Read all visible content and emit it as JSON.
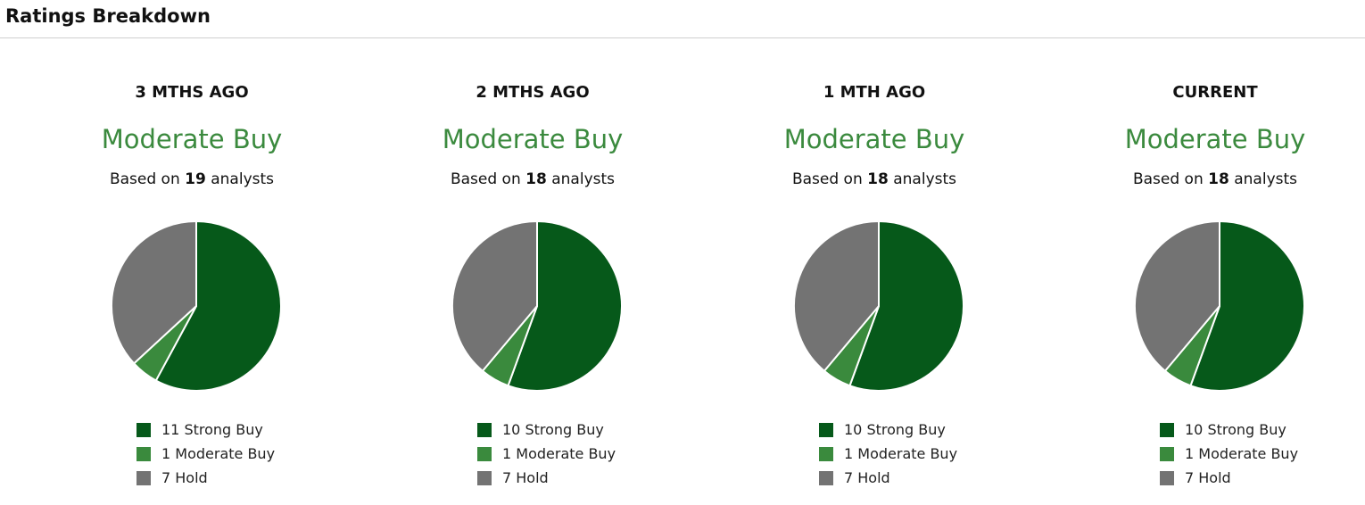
{
  "header": {
    "title": "Ratings Breakdown"
  },
  "colors": {
    "strong_buy": "#06591a",
    "moderate_buy": "#3a8a3d",
    "hold": "#737373"
  },
  "panels": [
    {
      "period": "3 MTHS AGO",
      "consensus": "Moderate Buy",
      "based_prefix": "Based on",
      "analyst_count": "19",
      "based_suffix": "analysts",
      "legend": [
        "11 Strong Buy",
        "1 Moderate Buy",
        "7 Hold"
      ]
    },
    {
      "period": "2 MTHS AGO",
      "consensus": "Moderate Buy",
      "based_prefix": "Based on",
      "analyst_count": "18",
      "based_suffix": "analysts",
      "legend": [
        "10 Strong Buy",
        "1 Moderate Buy",
        "7 Hold"
      ]
    },
    {
      "period": "1 MTH AGO",
      "consensus": "Moderate Buy",
      "based_prefix": "Based on",
      "analyst_count": "18",
      "based_suffix": "analysts",
      "legend": [
        "10 Strong Buy",
        "1 Moderate Buy",
        "7 Hold"
      ]
    },
    {
      "period": "CURRENT",
      "consensus": "Moderate Buy",
      "based_prefix": "Based on",
      "analyst_count": "18",
      "based_suffix": "analysts",
      "legend": [
        "10 Strong Buy",
        "1 Moderate Buy",
        "7 Hold"
      ]
    }
  ],
  "chart_data": [
    {
      "type": "pie",
      "title": "3 MTHS AGO",
      "categories": [
        "Strong Buy",
        "Moderate Buy",
        "Hold"
      ],
      "values": [
        11,
        1,
        7
      ]
    },
    {
      "type": "pie",
      "title": "2 MTHS AGO",
      "categories": [
        "Strong Buy",
        "Moderate Buy",
        "Hold"
      ],
      "values": [
        10,
        1,
        7
      ]
    },
    {
      "type": "pie",
      "title": "1 MTH AGO",
      "categories": [
        "Strong Buy",
        "Moderate Buy",
        "Hold"
      ],
      "values": [
        10,
        1,
        7
      ]
    },
    {
      "type": "pie",
      "title": "CURRENT",
      "categories": [
        "Strong Buy",
        "Moderate Buy",
        "Hold"
      ],
      "values": [
        10,
        1,
        7
      ]
    }
  ]
}
